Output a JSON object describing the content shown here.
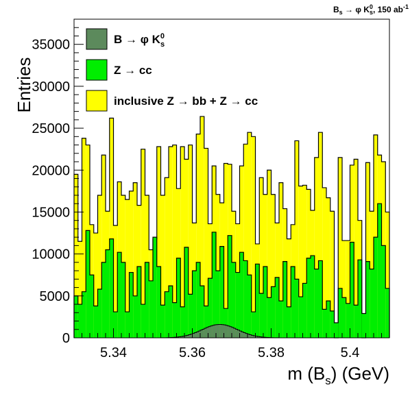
{
  "chart_data": {
    "type": "bar",
    "stacked": true,
    "title": "B_s → φ K_s^0, 150 ab^-1",
    "title_main": "B",
    "title_sub": "s",
    "title_rest1": " → φ K",
    "title_sup": "0",
    "title_sub2": "s",
    "title_rest2": ", 150 ab",
    "title_sup2": "-1",
    "xlabel": "m (B_s) (GeV)",
    "xlabel_main": "m (B",
    "xlabel_sub": "s",
    "xlabel_rest": ") (GeV)",
    "ylabel": "Entries",
    "xlim": [
      5.33,
      5.41
    ],
    "ylim": [
      0,
      38000
    ],
    "bin_width": 0.001,
    "x_ticks": [
      5.34,
      5.36,
      5.38,
      5.4
    ],
    "x_tick_labels": [
      "5.34",
      "5.36",
      "5.38",
      "5.4"
    ],
    "y_ticks": [
      0,
      5000,
      10000,
      15000,
      20000,
      25000,
      30000,
      35000
    ],
    "y_tick_labels": [
      "0",
      "5000",
      "10000",
      "15000",
      "20000",
      "25000",
      "30000",
      "35000"
    ],
    "legend_position": "top-left",
    "series": [
      {
        "name": "B → φ K_s^0",
        "legend_main": "B → φ K",
        "legend_sub": "s",
        "legend_sup": "0",
        "color": "#5c8a5c",
        "values": [
          0,
          0,
          0,
          0,
          0,
          0,
          0,
          0,
          0,
          0,
          0,
          0,
          0,
          0,
          0,
          0,
          0,
          0,
          0,
          0,
          0,
          0,
          0,
          0,
          0,
          0,
          0,
          0,
          0,
          0,
          0,
          0,
          0,
          0,
          0,
          0,
          0,
          0,
          0,
          0,
          0,
          0,
          0,
          0,
          0,
          0,
          0,
          0,
          0,
          0,
          0,
          0,
          0,
          0,
          0,
          0,
          0,
          0,
          0,
          0,
          0,
          0,
          0,
          0,
          0,
          0,
          0,
          0,
          0,
          0,
          0,
          0,
          0,
          0,
          0,
          0,
          0,
          0,
          0,
          0
        ]
      },
      {
        "name": "Z → cc",
        "legend_main": "Z → cc",
        "color": "#00ee00",
        "values": [
          5000,
          4000,
          5500,
          12800,
          7500,
          3800,
          5800,
          9000,
          10500,
          11800,
          3100,
          10200,
          9000,
          3100,
          7800,
          5000,
          8500,
          4000,
          9000,
          6800,
          12000,
          8500,
          3900,
          5500,
          6200,
          4200,
          9500,
          3700,
          10800,
          5200,
          8000,
          9000,
          6200,
          3800,
          7100,
          12600,
          8000,
          10900,
          3500,
          12200,
          9000,
          7800,
          10200,
          9200,
          7500,
          3100,
          8800,
          5300,
          8500,
          4800,
          6100,
          7200,
          4400,
          9100,
          3700,
          8500,
          7000,
          4900,
          6500,
          9500,
          9800,
          8200,
          9200,
          3400,
          4400,
          3200,
          1800,
          5900,
          4800,
          4100,
          11400,
          3900,
          9300,
          2900,
          9100,
          8200,
          12000,
          16000,
          11000,
          5900
        ]
      },
      {
        "name": "inclusive Z → bb + Z → cc",
        "legend_main": "inclusive Z → bb + Z → cc",
        "color": "#ffff00",
        "values": [
          19500,
          11500,
          23800,
          23000,
          13500,
          12500,
          17000,
          21800,
          15100,
          26200,
          13400,
          18600,
          17000,
          16500,
          17500,
          18500,
          15800,
          22500,
          17000,
          10500,
          11800,
          22800,
          17000,
          19100,
          22800,
          23000,
          17800,
          22800,
          21300,
          23000,
          13700,
          24300,
          26400,
          22600,
          13600,
          20500,
          17100,
          16100,
          20800,
          20700,
          15100,
          13600,
          20500,
          23100,
          24500,
          24000,
          11200,
          19100,
          17100,
          20000,
          17100,
          13700,
          18500,
          15400,
          11800,
          13500,
          23500,
          18100,
          18200,
          17700,
          15200,
          21500,
          24500,
          17900,
          16700,
          15100,
          0,
          21500,
          11600,
          11600,
          20600,
          21300,
          14000,
          0,
          20900,
          15100,
          24200,
          21800,
          21000,
          15000
        ]
      }
    ],
    "signal_peak": {
      "name": "B → φ K_s^0",
      "mean": 5.367,
      "sigma": 0.0045,
      "peak_value": 1600,
      "from": 5.35,
      "to": 5.384
    }
  }
}
